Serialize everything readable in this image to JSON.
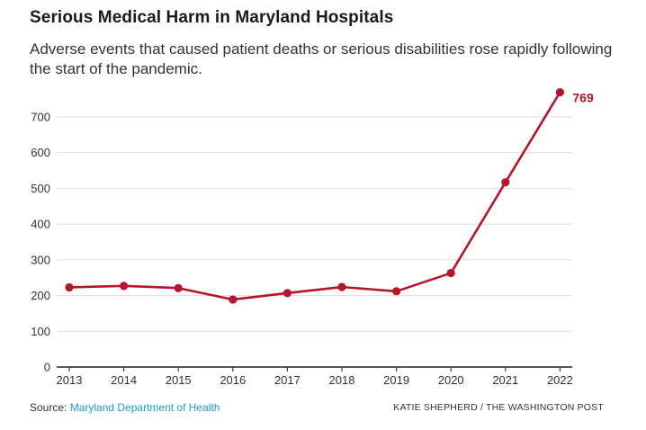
{
  "header": {
    "title": "Serious Medical Harm in Maryland Hospitals",
    "subtitle": "Adverse events that caused patient deaths or serious disabilities rose rapidly following the start of the pandemic."
  },
  "footer": {
    "source_prefix": "Source: ",
    "source_link": "Maryland Department of Health",
    "credit": "KATIE SHEPHERD / THE WASHINGTON POST"
  },
  "colors": {
    "line": "#b5162b",
    "grid": "#dddddd",
    "axis": "#222222",
    "link": "#1a9cc9"
  },
  "chart_data": {
    "type": "line",
    "title": "Serious Medical Harm in Maryland Hospitals",
    "xlabel": "",
    "ylabel": "",
    "x": [
      "2013",
      "2014",
      "2015",
      "2016",
      "2017",
      "2018",
      "2019",
      "2020",
      "2021",
      "2022"
    ],
    "values": [
      223,
      227,
      221,
      189,
      207,
      224,
      212,
      263,
      517,
      769
    ],
    "ylim": [
      0,
      700
    ],
    "yticks": [
      0,
      100,
      200,
      300,
      400,
      500,
      600,
      700
    ],
    "grid": true,
    "end_label": "769"
  }
}
